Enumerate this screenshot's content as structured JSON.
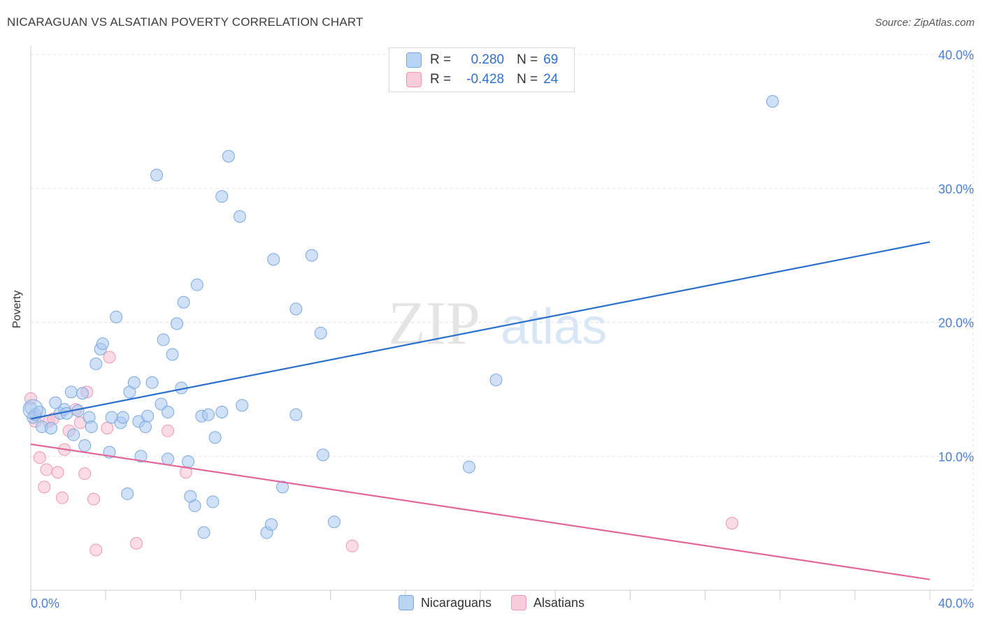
{
  "title": "NICARAGUAN VS ALSATIAN POVERTY CORRELATION CHART",
  "source": "Source: ZipAtlas.com",
  "watermark": {
    "zip": "ZIP",
    "atlas": "atlas"
  },
  "legend": {
    "rows": [
      {
        "r_label": "R =",
        "r_value": "0.280",
        "n_label": "N =",
        "n_value": "69"
      },
      {
        "r_label": "R =",
        "r_value": "-0.428",
        "n_label": "N =",
        "n_value": "24"
      }
    ]
  },
  "colors": {
    "blue_fill": "#a9c8f0",
    "blue_stroke": "#7aa8e0",
    "blue_line": "#2a6fcc",
    "pink_fill": "#f7bdd0",
    "pink_stroke": "#ee98b6",
    "pink_line": "#e0679a",
    "tick_label": "#4a7fd0",
    "grid": "#e2e2e2"
  },
  "chart_data": {
    "type": "scatter",
    "title": "NICARAGUAN VS ALSATIAN POVERTY CORRELATION CHART",
    "xlabel": "",
    "ylabel": "Poverty",
    "xlim": [
      0,
      40
    ],
    "ylim": [
      0,
      40
    ],
    "x_tick_labels": [
      {
        "value": 0,
        "label": "0.0%"
      },
      {
        "value": 40,
        "label": "40.0%"
      }
    ],
    "y_tick_labels": [
      {
        "value": 10,
        "label": "10.0%"
      },
      {
        "value": 20,
        "label": "20.0%"
      },
      {
        "value": 30,
        "label": "30.0%"
      },
      {
        "value": 40,
        "label": "40.0%"
      }
    ],
    "series": [
      {
        "name": "Nicaraguans",
        "color": "#a9c8f0",
        "trendline": {
          "x": [
            0,
            40
          ],
          "y": [
            12.8,
            26.0
          ]
        },
        "points": [
          [
            0.0,
            13.6
          ],
          [
            0.1,
            12.9
          ],
          [
            0.2,
            13.1
          ],
          [
            0.4,
            13.3
          ],
          [
            0.5,
            12.2
          ],
          [
            0.9,
            12.1
          ],
          [
            1.1,
            14.0
          ],
          [
            1.3,
            13.2
          ],
          [
            1.5,
            13.5
          ],
          [
            1.6,
            13.2
          ],
          [
            1.8,
            14.8
          ],
          [
            1.9,
            11.6
          ],
          [
            2.1,
            13.4
          ],
          [
            2.3,
            14.7
          ],
          [
            2.4,
            10.8
          ],
          [
            2.6,
            12.9
          ],
          [
            2.7,
            12.2
          ],
          [
            2.9,
            16.9
          ],
          [
            3.1,
            18.0
          ],
          [
            3.2,
            18.4
          ],
          [
            3.5,
            10.3
          ],
          [
            3.6,
            12.9
          ],
          [
            3.8,
            20.4
          ],
          [
            4.0,
            12.5
          ],
          [
            4.1,
            12.9
          ],
          [
            4.3,
            7.2
          ],
          [
            4.4,
            14.8
          ],
          [
            4.6,
            15.5
          ],
          [
            4.8,
            12.6
          ],
          [
            4.9,
            10.0
          ],
          [
            5.1,
            12.2
          ],
          [
            5.2,
            13.0
          ],
          [
            5.4,
            15.5
          ],
          [
            5.6,
            31.0
          ],
          [
            5.8,
            13.9
          ],
          [
            5.9,
            18.7
          ],
          [
            6.1,
            13.3
          ],
          [
            6.1,
            9.8
          ],
          [
            6.3,
            17.6
          ],
          [
            6.5,
            19.9
          ],
          [
            6.7,
            15.1
          ],
          [
            6.8,
            21.5
          ],
          [
            7.0,
            9.6
          ],
          [
            7.1,
            7.0
          ],
          [
            7.3,
            6.3
          ],
          [
            7.4,
            22.8
          ],
          [
            7.6,
            13.0
          ],
          [
            7.7,
            4.3
          ],
          [
            7.9,
            13.1
          ],
          [
            8.1,
            6.6
          ],
          [
            8.2,
            11.4
          ],
          [
            8.5,
            13.3
          ],
          [
            8.5,
            29.4
          ],
          [
            8.8,
            32.4
          ],
          [
            9.3,
            27.9
          ],
          [
            9.4,
            13.8
          ],
          [
            10.5,
            4.3
          ],
          [
            10.7,
            4.9
          ],
          [
            10.8,
            24.7
          ],
          [
            11.2,
            7.7
          ],
          [
            11.8,
            21.0
          ],
          [
            11.8,
            13.1
          ],
          [
            12.5,
            25.0
          ],
          [
            12.9,
            19.2
          ],
          [
            13.0,
            10.1
          ],
          [
            13.5,
            5.1
          ],
          [
            19.5,
            9.2
          ],
          [
            20.7,
            15.7
          ],
          [
            33.0,
            36.5
          ]
        ]
      },
      {
        "name": "Alsatians",
        "color": "#f7bdd0",
        "trendline": {
          "x": [
            0,
            40
          ],
          "y": [
            10.9,
            0.8
          ]
        },
        "points": [
          [
            0.0,
            14.3
          ],
          [
            0.2,
            12.6
          ],
          [
            0.4,
            9.9
          ],
          [
            0.6,
            7.7
          ],
          [
            0.7,
            9.0
          ],
          [
            0.8,
            12.6
          ],
          [
            1.0,
            12.8
          ],
          [
            1.2,
            8.8
          ],
          [
            1.4,
            6.9
          ],
          [
            1.5,
            10.5
          ],
          [
            1.7,
            11.9
          ],
          [
            2.0,
            13.5
          ],
          [
            2.2,
            12.5
          ],
          [
            2.4,
            8.7
          ],
          [
            2.5,
            14.8
          ],
          [
            2.8,
            6.8
          ],
          [
            2.9,
            3.0
          ],
          [
            3.4,
            12.1
          ],
          [
            3.5,
            17.4
          ],
          [
            4.7,
            3.5
          ],
          [
            6.1,
            11.9
          ],
          [
            6.9,
            8.8
          ],
          [
            14.3,
            3.3
          ],
          [
            31.2,
            5.0
          ]
        ]
      }
    ]
  },
  "bottom_legend": [
    {
      "label": "Nicaraguans",
      "color": "#a9c8f0",
      "stroke": "#7aa8e0"
    },
    {
      "label": "Alsatians",
      "color": "#f7bdd0",
      "stroke": "#ee98b6"
    }
  ]
}
